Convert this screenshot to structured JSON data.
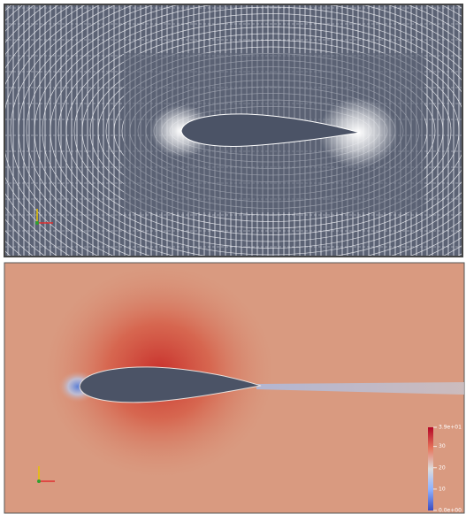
{
  "bottom_panel": {
    "colorbar": {
      "range": [
        0,
        39
      ],
      "ticks": [
        {
          "value": 39,
          "label": "3.9e+01"
        },
        30,
        20,
        10,
        {
          "value": 0,
          "label": "0.0e+00"
        }
      ]
    }
  }
}
